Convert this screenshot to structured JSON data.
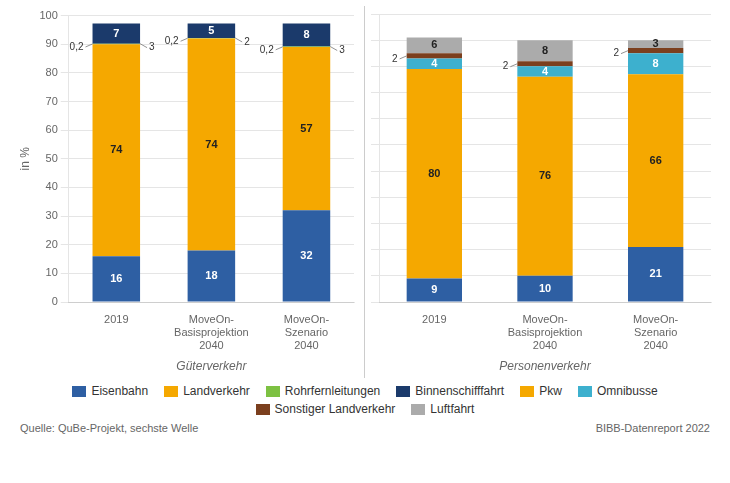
{
  "chart_data": [
    {
      "type": "bar",
      "stacked": true,
      "data_labels": true,
      "grid": true,
      "xlabel": "Güterverkehr",
      "ylabel": "in %",
      "categories": [
        "2019",
        "MoveOn-\nBasisprojektion\n2040",
        "MoveOn-\nSzenario\n2040"
      ],
      "ylim": [
        0,
        100
      ],
      "yticks": [
        0,
        10,
        20,
        30,
        40,
        50,
        60,
        70,
        80,
        90,
        100
      ],
      "series": [
        {
          "name": "Eisenbahn",
          "color": "#2E5FA3",
          "values": [
            16,
            18,
            32
          ]
        },
        {
          "name": "Landverkehr",
          "color": "#F5A800",
          "values": [
            74,
            74,
            57
          ]
        },
        {
          "name": "Rohrfernleitungen",
          "color": "#7DC142",
          "values": [
            0.2,
            0.2,
            0.2
          ],
          "value_labels": [
            "0,2",
            "0,2",
            "0,2"
          ]
        },
        {
          "name": "Binnenschifffahrt",
          "color": "#1B3A6B",
          "values": [
            7,
            5,
            8
          ]
        }
      ],
      "annotations": [
        {
          "text": "3",
          "category": "2019"
        },
        {
          "text": "2",
          "category": "MoveOn-\nBasisprojektion\n2040"
        },
        {
          "text": "3",
          "category": "MoveOn-\nSzenario\n2040"
        }
      ]
    },
    {
      "type": "bar",
      "stacked": true,
      "data_labels": true,
      "grid": true,
      "tick_labels": "x",
      "xlabel": "Personenverkehr",
      "categories": [
        "2019",
        "MoveOn-\nBasisprojektion\n2040",
        "MoveOn-\nSzenario\n2040"
      ],
      "ylim": [
        0,
        110
      ],
      "yticks": [
        0,
        10,
        20,
        30,
        40,
        50,
        60,
        70,
        80,
        90,
        100,
        110
      ],
      "series": [
        {
          "name": "Eisenbahn",
          "color": "#2E5FA3",
          "values": [
            9,
            10,
            21
          ]
        },
        {
          "name": "Pkw",
          "color": "#F5A800",
          "values": [
            80,
            76,
            66
          ]
        },
        {
          "name": "Omnibusse",
          "color": "#3DB0CE",
          "values": [
            4,
            4,
            8
          ]
        },
        {
          "name": "Sonstiger Landverkehr",
          "color": "#7B3F1E",
          "values": [
            2,
            2,
            2
          ]
        },
        {
          "name": "Luftfahrt",
          "color": "#ABABAB",
          "values": [
            6,
            8,
            3
          ]
        }
      ]
    }
  ],
  "legend": "bottom",
  "source": [
    "Quelle: QuBe-Projekt, sechste Welle",
    "BIBB-Datenreport 2022"
  ]
}
